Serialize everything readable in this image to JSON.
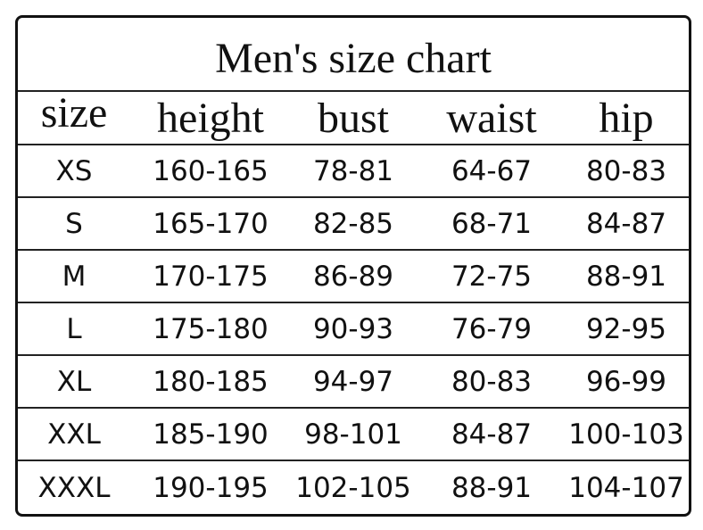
{
  "header": {
    "title": "Men's size chart"
  },
  "table": {
    "columns": [
      "size",
      "height",
      "bust",
      "waist",
      "hip"
    ],
    "rows": [
      [
        "XS",
        "160-165",
        "78-81",
        "64-67",
        "80-83"
      ],
      [
        "S",
        "165-170",
        "82-85",
        "68-71",
        "84-87"
      ],
      [
        "M",
        "170-175",
        "86-89",
        "72-75",
        "88-91"
      ],
      [
        "L",
        "175-180",
        "90-93",
        "76-79",
        "92-95"
      ],
      [
        "XL",
        "180-185",
        "94-97",
        "80-83",
        "96-99"
      ],
      [
        "XXL",
        "185-190",
        "98-101",
        "84-87",
        "100-103"
      ],
      [
        "XXXL",
        "190-195",
        "102-105",
        "88-91",
        "104-107"
      ]
    ]
  }
}
